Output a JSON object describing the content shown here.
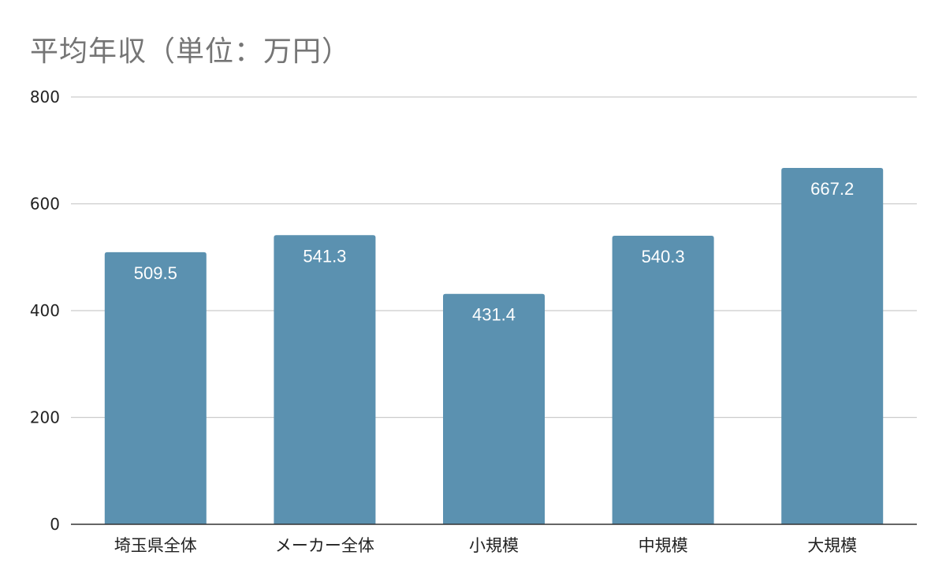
{
  "chart_data": {
    "type": "bar",
    "title": "平均年収（単位：万円）",
    "xlabel": "",
    "ylabel": "",
    "categories": [
      "埼玉県全体",
      "メーカー全体",
      "小規模",
      "中規模",
      "大規模"
    ],
    "values": [
      509.5,
      541.3,
      431.4,
      540.3,
      667.2
    ],
    "value_labels": [
      "509.5",
      "541.3",
      "431.4",
      "540.3",
      "667.2"
    ],
    "ylim": [
      0,
      800
    ],
    "yticks": [
      0,
      200,
      400,
      600,
      800
    ],
    "ytick_labels": [
      "0",
      "200",
      "400",
      "600",
      "800"
    ],
    "grid": true,
    "legend": "none",
    "bar_color": "#5b91b0",
    "grid_color": "#cccccc",
    "axis_color": "#333333"
  }
}
